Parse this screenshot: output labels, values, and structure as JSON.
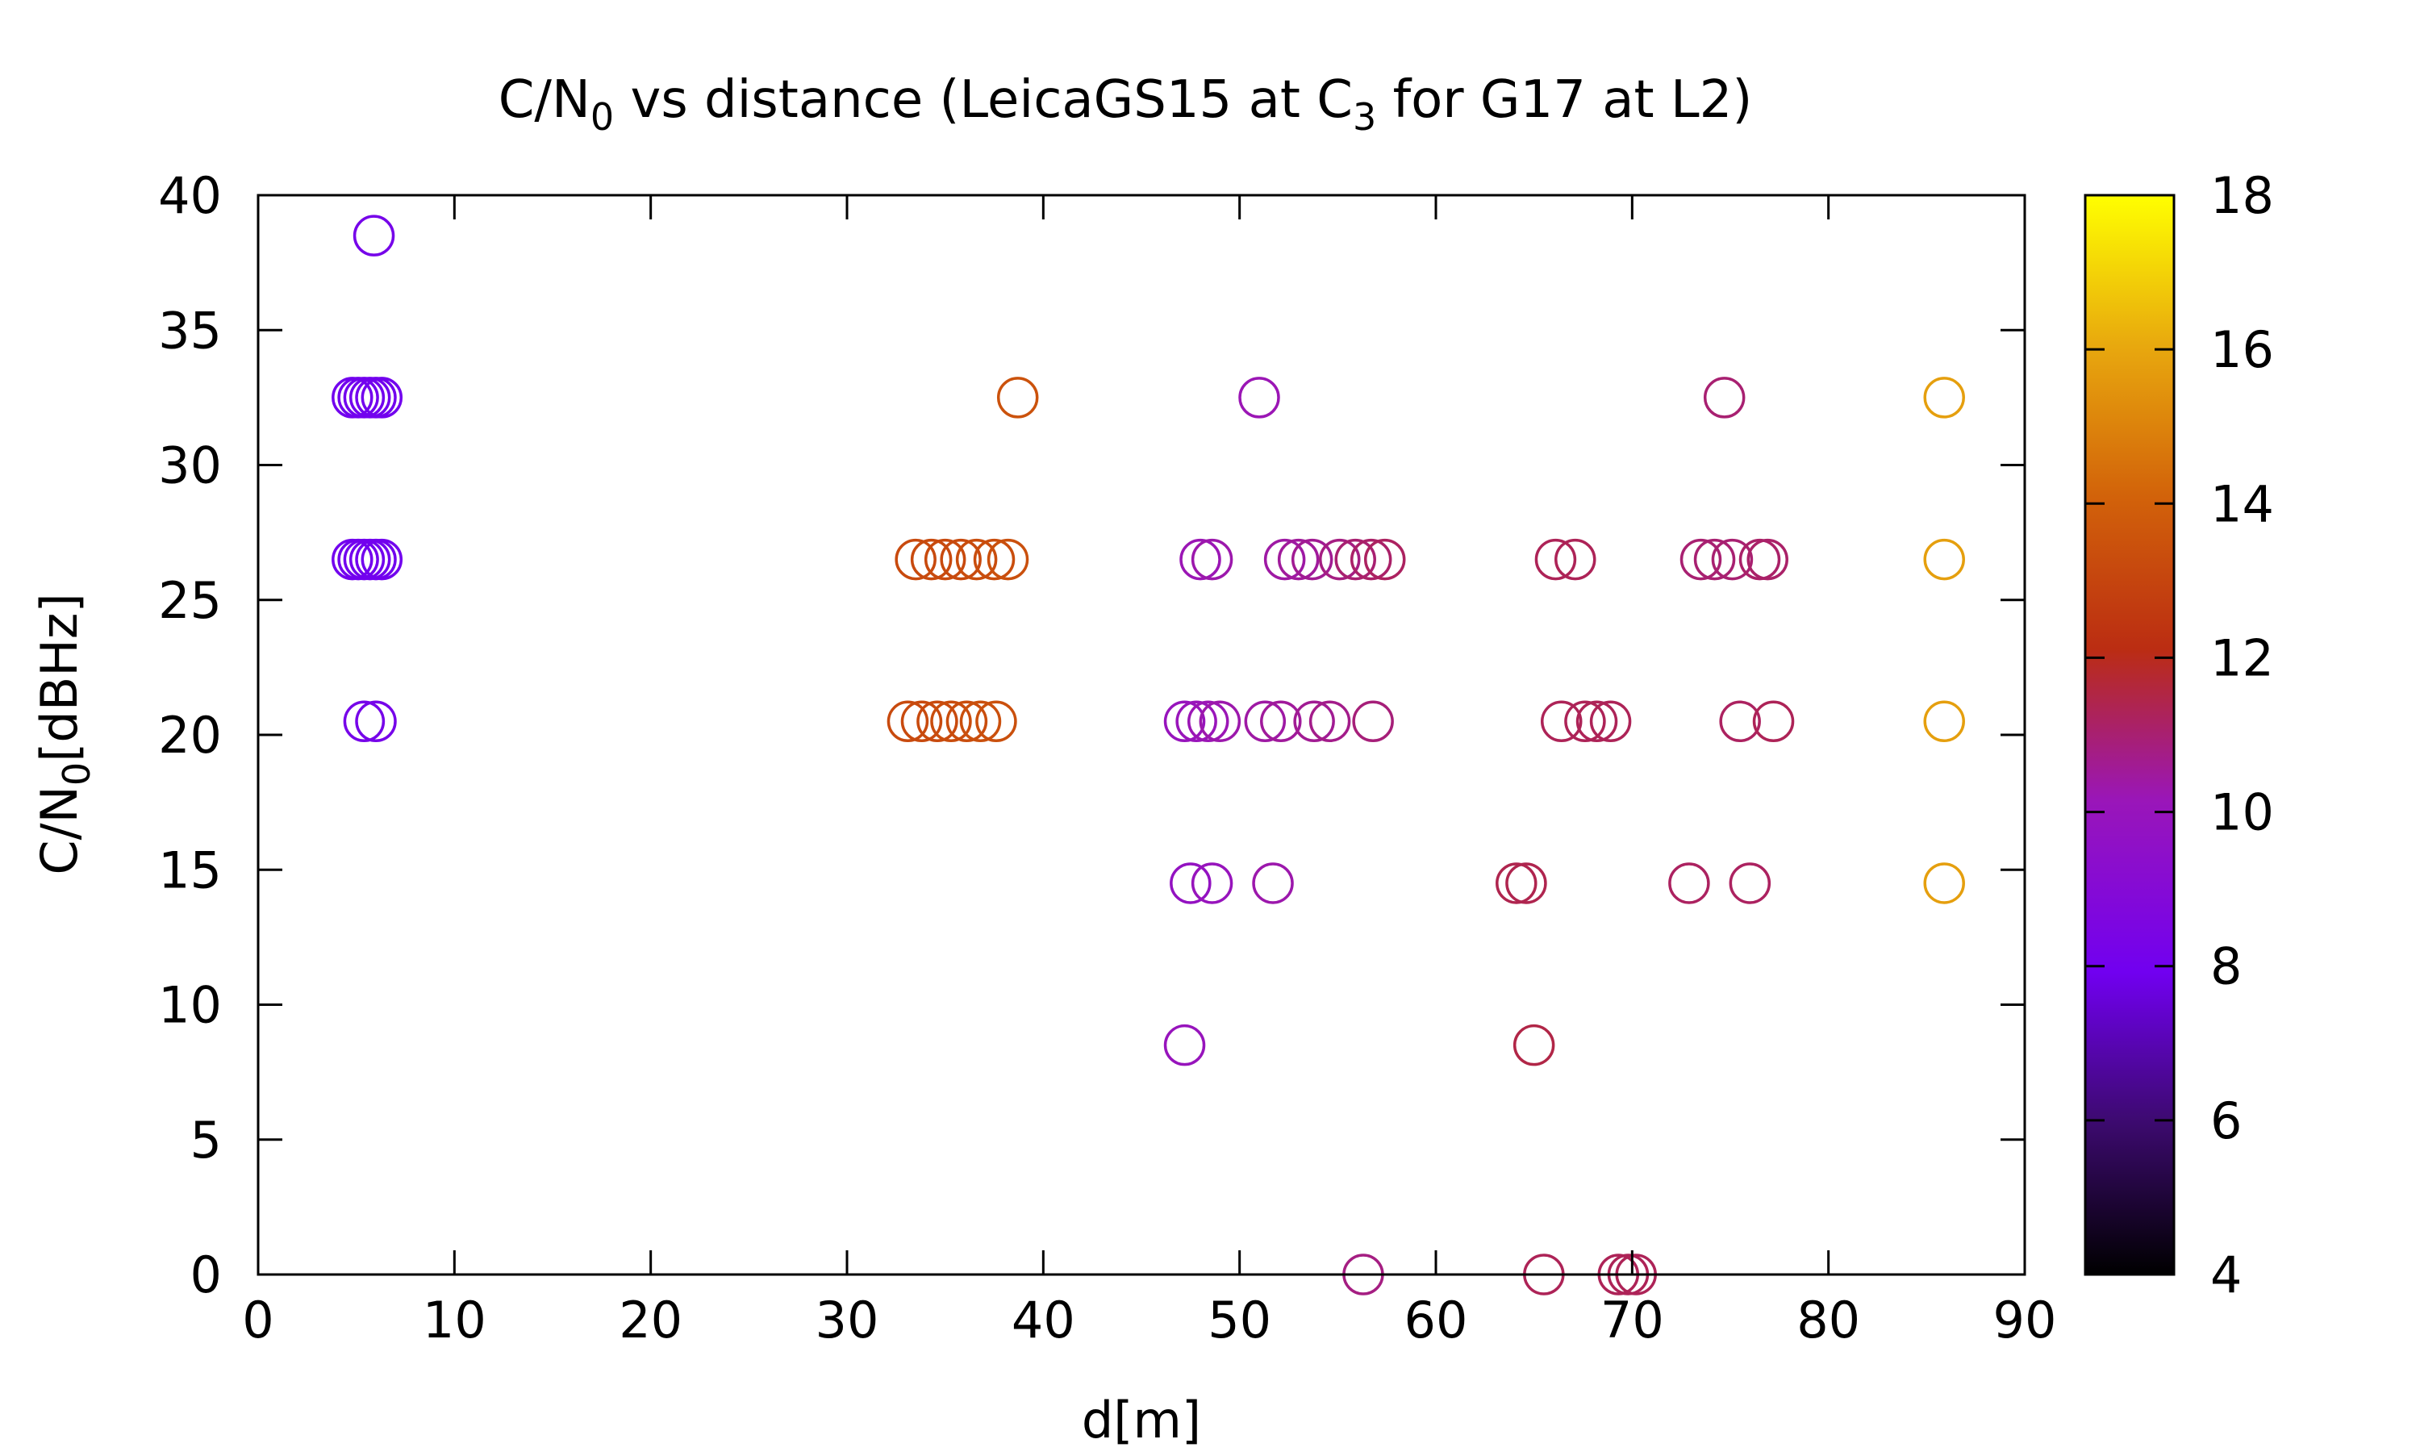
{
  "chart_data": {
    "type": "scatter",
    "title_parts": [
      "C/N",
      "0",
      " vs distance (LeicaGS15 at C",
      "3",
      " for G17 at L2)"
    ],
    "xlabel": "d[m]",
    "ylabel_parts": [
      "C/N",
      "0",
      "[dBHz]"
    ],
    "xlim": [
      0,
      90
    ],
    "ylim": [
      0,
      40
    ],
    "xticks": [
      "0",
      "10",
      "20",
      "30",
      "40",
      "50",
      "60",
      "70",
      "80",
      "90"
    ],
    "yticks": [
      "0",
      "5",
      "10",
      "15",
      "20",
      "25",
      "30",
      "35",
      "40"
    ],
    "colorbar": {
      "range": [
        4,
        18
      ],
      "ticks": [
        "4",
        "6",
        "8",
        "10",
        "12",
        "14",
        "16",
        "18"
      ],
      "palette": "black-blue-purple-red-orange-yellow"
    },
    "marker": "open-circle",
    "points": [
      {
        "x": 5.9,
        "y": 38.5,
        "c": 8.2
      },
      {
        "x": 4.8,
        "y": 32.5,
        "c": 8.0
      },
      {
        "x": 5.1,
        "y": 32.5,
        "c": 8.0
      },
      {
        "x": 5.4,
        "y": 32.5,
        "c": 8.0
      },
      {
        "x": 5.7,
        "y": 32.5,
        "c": 8.0
      },
      {
        "x": 6.0,
        "y": 32.5,
        "c": 8.0
      },
      {
        "x": 6.3,
        "y": 32.5,
        "c": 8.0
      },
      {
        "x": 4.8,
        "y": 26.5,
        "c": 8.0
      },
      {
        "x": 5.1,
        "y": 26.5,
        "c": 8.0
      },
      {
        "x": 5.4,
        "y": 26.5,
        "c": 8.0
      },
      {
        "x": 5.7,
        "y": 26.5,
        "c": 8.0
      },
      {
        "x": 6.0,
        "y": 26.5,
        "c": 8.0
      },
      {
        "x": 6.3,
        "y": 26.5,
        "c": 8.0
      },
      {
        "x": 5.4,
        "y": 20.5,
        "c": 8.2
      },
      {
        "x": 6.0,
        "y": 20.5,
        "c": 8.2
      },
      {
        "x": 38.7,
        "y": 32.5,
        "c": 13.5
      },
      {
        "x": 33.5,
        "y": 26.5,
        "c": 13.2
      },
      {
        "x": 34.3,
        "y": 26.5,
        "c": 13.2
      },
      {
        "x": 35.0,
        "y": 26.5,
        "c": 13.2
      },
      {
        "x": 35.8,
        "y": 26.5,
        "c": 13.2
      },
      {
        "x": 36.6,
        "y": 26.5,
        "c": 13.3
      },
      {
        "x": 37.5,
        "y": 26.5,
        "c": 13.3
      },
      {
        "x": 38.2,
        "y": 26.5,
        "c": 13.4
      },
      {
        "x": 33.1,
        "y": 20.5,
        "c": 13.2
      },
      {
        "x": 33.8,
        "y": 20.5,
        "c": 13.2
      },
      {
        "x": 34.6,
        "y": 20.5,
        "c": 13.2
      },
      {
        "x": 35.3,
        "y": 20.5,
        "c": 13.3
      },
      {
        "x": 36.1,
        "y": 20.5,
        "c": 13.3
      },
      {
        "x": 36.8,
        "y": 20.5,
        "c": 13.4
      },
      {
        "x": 37.6,
        "y": 20.5,
        "c": 13.4
      },
      {
        "x": 51.0,
        "y": 32.5,
        "c": 10.2
      },
      {
        "x": 48.0,
        "y": 26.5,
        "c": 10.2
      },
      {
        "x": 48.6,
        "y": 26.5,
        "c": 10.3
      },
      {
        "x": 52.3,
        "y": 26.5,
        "c": 10.4
      },
      {
        "x": 53.0,
        "y": 26.5,
        "c": 10.5
      },
      {
        "x": 53.7,
        "y": 26.5,
        "c": 10.6
      },
      {
        "x": 55.1,
        "y": 26.5,
        "c": 10.8
      },
      {
        "x": 55.9,
        "y": 26.5,
        "c": 11.0
      },
      {
        "x": 56.7,
        "y": 26.5,
        "c": 11.1
      },
      {
        "x": 57.4,
        "y": 26.5,
        "c": 11.2
      },
      {
        "x": 47.2,
        "y": 20.5,
        "c": 10.0
      },
      {
        "x": 47.8,
        "y": 20.5,
        "c": 10.1
      },
      {
        "x": 48.4,
        "y": 20.5,
        "c": 10.2
      },
      {
        "x": 49.0,
        "y": 20.5,
        "c": 10.3
      },
      {
        "x": 51.3,
        "y": 20.5,
        "c": 10.4
      },
      {
        "x": 52.1,
        "y": 20.5,
        "c": 10.5
      },
      {
        "x": 53.8,
        "y": 20.5,
        "c": 10.6
      },
      {
        "x": 54.6,
        "y": 20.5,
        "c": 10.7
      },
      {
        "x": 56.8,
        "y": 20.5,
        "c": 10.9
      },
      {
        "x": 47.5,
        "y": 14.5,
        "c": 9.8
      },
      {
        "x": 48.6,
        "y": 14.5,
        "c": 10.0
      },
      {
        "x": 51.7,
        "y": 14.5,
        "c": 10.3
      },
      {
        "x": 47.2,
        "y": 8.5,
        "c": 10.0
      },
      {
        "x": 56.3,
        "y": 0.0,
        "c": 10.8
      },
      {
        "x": 66.1,
        "y": 26.5,
        "c": 11.3
      },
      {
        "x": 67.1,
        "y": 26.5,
        "c": 11.3
      },
      {
        "x": 66.4,
        "y": 20.5,
        "c": 11.3
      },
      {
        "x": 67.6,
        "y": 20.5,
        "c": 11.3
      },
      {
        "x": 68.2,
        "y": 20.5,
        "c": 11.3
      },
      {
        "x": 68.9,
        "y": 20.5,
        "c": 11.3
      },
      {
        "x": 64.1,
        "y": 14.5,
        "c": 11.4
      },
      {
        "x": 64.6,
        "y": 14.5,
        "c": 11.4
      },
      {
        "x": 65.0,
        "y": 8.5,
        "c": 11.5
      },
      {
        "x": 65.5,
        "y": 0.0,
        "c": 11.3
      },
      {
        "x": 69.3,
        "y": 0.0,
        "c": 11.3
      },
      {
        "x": 69.8,
        "y": 0.0,
        "c": 11.3
      },
      {
        "x": 70.2,
        "y": 0.0,
        "c": 11.3
      },
      {
        "x": 74.7,
        "y": 32.5,
        "c": 11.0
      },
      {
        "x": 73.5,
        "y": 26.5,
        "c": 11.0
      },
      {
        "x": 74.2,
        "y": 26.5,
        "c": 11.0
      },
      {
        "x": 75.1,
        "y": 26.5,
        "c": 11.0
      },
      {
        "x": 76.5,
        "y": 26.5,
        "c": 11.1
      },
      {
        "x": 76.9,
        "y": 26.5,
        "c": 11.1
      },
      {
        "x": 75.5,
        "y": 20.5,
        "c": 11.2
      },
      {
        "x": 77.2,
        "y": 20.5,
        "c": 11.3
      },
      {
        "x": 72.9,
        "y": 14.5,
        "c": 11.2
      },
      {
        "x": 76.0,
        "y": 14.5,
        "c": 11.2
      },
      {
        "x": 85.9,
        "y": 32.5,
        "c": 15.8
      },
      {
        "x": 85.9,
        "y": 26.5,
        "c": 15.8
      },
      {
        "x": 85.9,
        "y": 20.5,
        "c": 15.8
      },
      {
        "x": 85.9,
        "y": 14.5,
        "c": 15.8
      }
    ]
  }
}
